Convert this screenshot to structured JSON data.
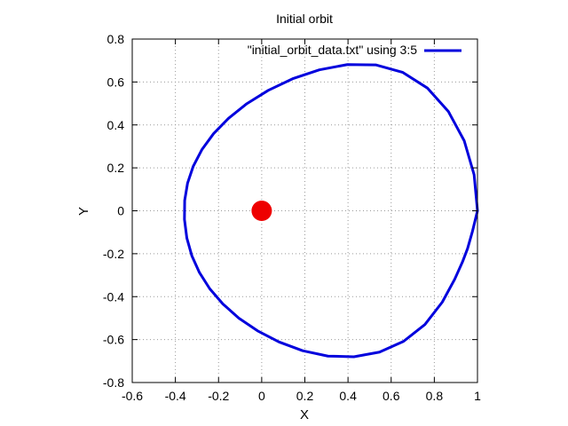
{
  "chart_data": {
    "type": "line",
    "title": "Initial orbit",
    "xlabel": "X",
    "ylabel": "Y",
    "xlim": [
      -0.6,
      1
    ],
    "ylim": [
      -0.8,
      0.8
    ],
    "x_ticks": [
      -0.6,
      -0.4,
      -0.2,
      0,
      0.2,
      0.4,
      0.6,
      0.8,
      1
    ],
    "x_tick_labels": [
      "-0.6",
      "-0.4",
      "-0.2",
      "0",
      "0.2",
      "0.4",
      "0.6",
      "0.8",
      "1"
    ],
    "y_ticks": [
      -0.8,
      -0.6,
      -0.4,
      -0.2,
      0,
      0.2,
      0.4,
      0.6,
      0.8
    ],
    "y_tick_labels": [
      "-0.8",
      "-0.6",
      "-0.4",
      "-0.2",
      "0",
      "0.2",
      "0.4",
      "0.6",
      "0.8"
    ],
    "grid": true,
    "legend_position": "top-right",
    "series": [
      {
        "name": "\"initial_orbit_data.txt\" using 3:5",
        "color": "#0000dd",
        "x": [
          1.0,
          0.9844,
          0.9386,
          0.8652,
          0.7685,
          0.6541,
          0.5282,
          0.3973,
          0.2672,
          0.1435,
          0.0304,
          -0.0691,
          -0.1537,
          -0.223,
          -0.2773,
          -0.3172,
          -0.3435,
          -0.357,
          -0.358,
          -0.347,
          -0.3239,
          -0.2886,
          -0.2407,
          -0.1799,
          -0.106,
          -0.019,
          0.0804,
          0.19,
          0.307,
          0.4272,
          0.5458,
          0.6574,
          0.7563,
          0.837,
          0.8946,
          0.9302,
          0.9541,
          0.977,
          1.0
        ],
        "y": [
          0.0,
          0.168,
          0.3261,
          0.4625,
          0.5713,
          0.6446,
          0.6798,
          0.6812,
          0.6566,
          0.6151,
          0.5609,
          0.4988,
          0.4309,
          0.3594,
          0.2847,
          0.2077,
          0.129,
          0.048,
          -0.04,
          -0.127,
          -0.2091,
          -0.2878,
          -0.3633,
          -0.434,
          -0.5002,
          -0.5594,
          -0.6111,
          -0.652,
          -0.677,
          -0.68,
          -0.6583,
          -0.6083,
          -0.5298,
          -0.4253,
          -0.3186,
          -0.2389,
          -0.176,
          -0.0947,
          0.0
        ]
      }
    ],
    "central_body": {
      "x": 0,
      "y": 0,
      "color": "#ee0000"
    }
  }
}
